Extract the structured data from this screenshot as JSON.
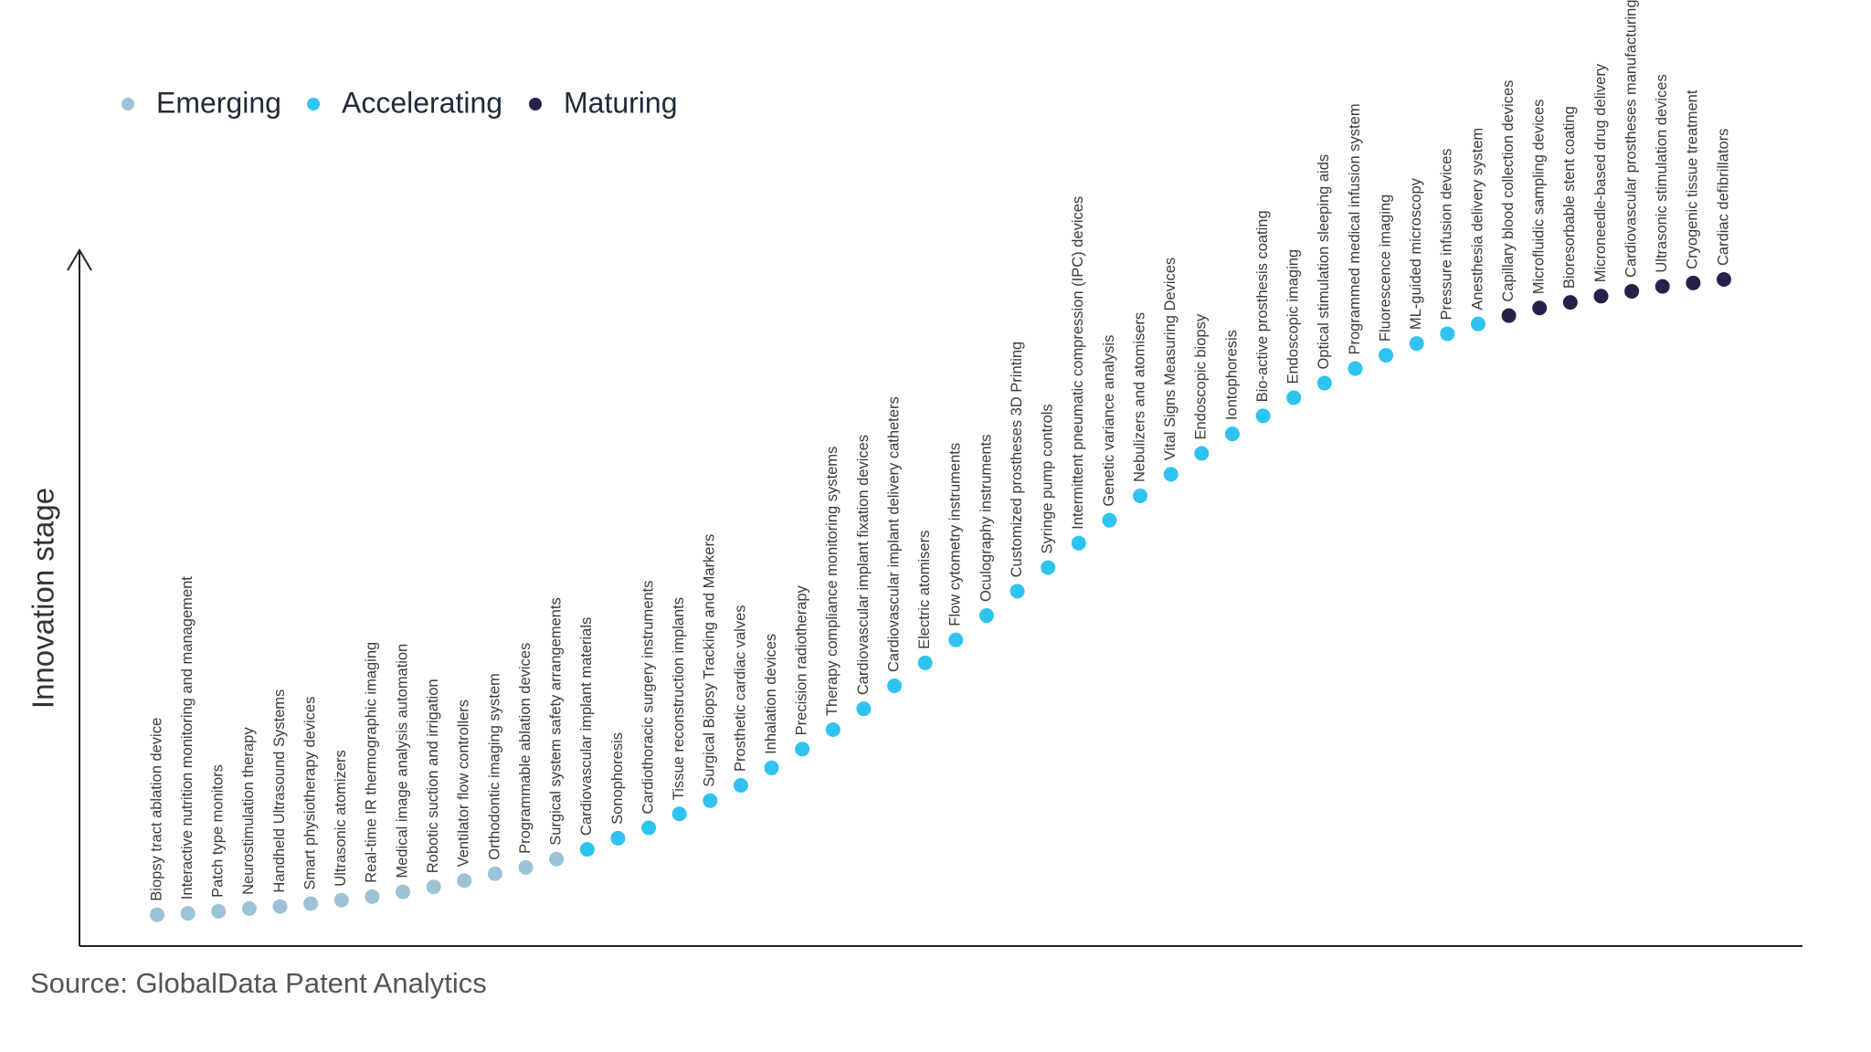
{
  "chart_data": {
    "type": "dot",
    "y_label": "Innovation stage",
    "source": "Source: GlobalData Patent Analytics",
    "ylim": [
      0,
      100
    ],
    "legend": "top-left",
    "categories": [
      "Biopsy tract ablation device",
      "Interactive nutrition monitoring and management",
      "Patch type monitors",
      "Neurostimulation therapy",
      "Handheld Ultrasound Systems",
      "Smart physiotherapy devices",
      "Ultrasonic atomizers",
      "Real-time IR thermographic imaging",
      "Medical image analysis automation",
      "Robotic suction and irrigation",
      "Ventilator flow controllers",
      "Orthodontic imaging system",
      "Programmable ablation devices",
      "Surgical system safety arrangements",
      "Cardiovascular implant materials",
      "Sonophoresis",
      "Cardiothoracic surgery instruments",
      "Tissue reconstruction implants",
      "Surgical Biopsy Tracking and Markers",
      "Prosthetic cardiac valves",
      "Inhalation devices",
      "Precision radiotherapy",
      "Therapy compliance monitoring systems",
      "Cardiovascular implant fixation devices",
      "Cardiovascular implant delivery catheters",
      "Electric atomisers",
      "Flow cytometry instruments",
      "Oculography instruments",
      "Customized prostheses 3D Printing",
      "Syringe pump controls",
      "Intermittent pneumatic compression (IPC) devices",
      "Genetic variance analysis",
      "Nebulizers and atomisers",
      "Vital Signs Measuring Devices",
      "Endoscopic biopsy",
      "Iontophoresis",
      "Bio-active prosthesis coating",
      "Endoscopic imaging",
      "Optical stimulation sleeping aids",
      "Programmed medical infusion system",
      "Fluorescence imaging",
      "ML-guided microscopy",
      "Pressure infusion devices",
      "Anesthesia delivery system",
      "Capillary blood collection devices",
      "Microfluidic sampling devices",
      "Bioresorbable stent coating",
      "Microneedle-based drug delivery",
      "Cardiovascular prostheses manufacturing",
      "Ultrasonic stimulation devices",
      "Cryogenic tissue treatment",
      "Cardiac defibrillators"
    ],
    "series": [
      {
        "name": "Emerging",
        "color": "#9cc3d5",
        "values": [
          4.5,
          4.7,
          5.0,
          5.4,
          5.7,
          6.1,
          6.6,
          7.1,
          7.8,
          8.5,
          9.4,
          10.4,
          11.3,
          12.5,
          null,
          null,
          null,
          null,
          null,
          null,
          null,
          null,
          null,
          null,
          null,
          null,
          null,
          null,
          null,
          null,
          null,
          null,
          null,
          null,
          null,
          null,
          null,
          null,
          null,
          null,
          null,
          null,
          null,
          null,
          null,
          null,
          null,
          null,
          null,
          null,
          null,
          null
        ]
      },
      {
        "name": "Accelerating",
        "color": "#2ec3f0",
        "values": [
          null,
          null,
          null,
          null,
          null,
          null,
          null,
          null,
          null,
          null,
          null,
          null,
          null,
          null,
          13.9,
          15.5,
          17.0,
          19.0,
          20.9,
          23.1,
          25.6,
          28.3,
          31.1,
          34.1,
          37.4,
          40.7,
          44.0,
          47.5,
          51.0,
          54.4,
          57.9,
          61.2,
          64.7,
          67.8,
          70.8,
          73.6,
          76.2,
          78.8,
          80.9,
          83.0,
          84.9,
          86.6,
          88.0,
          89.4,
          null,
          null,
          null,
          null,
          null,
          null,
          null,
          null
        ]
      },
      {
        "name": "Maturing",
        "color": "#2a1f4a",
        "values": [
          null,
          null,
          null,
          null,
          null,
          null,
          null,
          null,
          null,
          null,
          null,
          null,
          null,
          null,
          null,
          null,
          null,
          null,
          null,
          null,
          null,
          null,
          null,
          null,
          null,
          null,
          null,
          null,
          null,
          null,
          null,
          null,
          null,
          null,
          null,
          null,
          null,
          null,
          null,
          null,
          null,
          null,
          null,
          null,
          90.6,
          91.7,
          92.5,
          93.4,
          94.1,
          94.8,
          95.3,
          95.8
        ]
      }
    ]
  }
}
